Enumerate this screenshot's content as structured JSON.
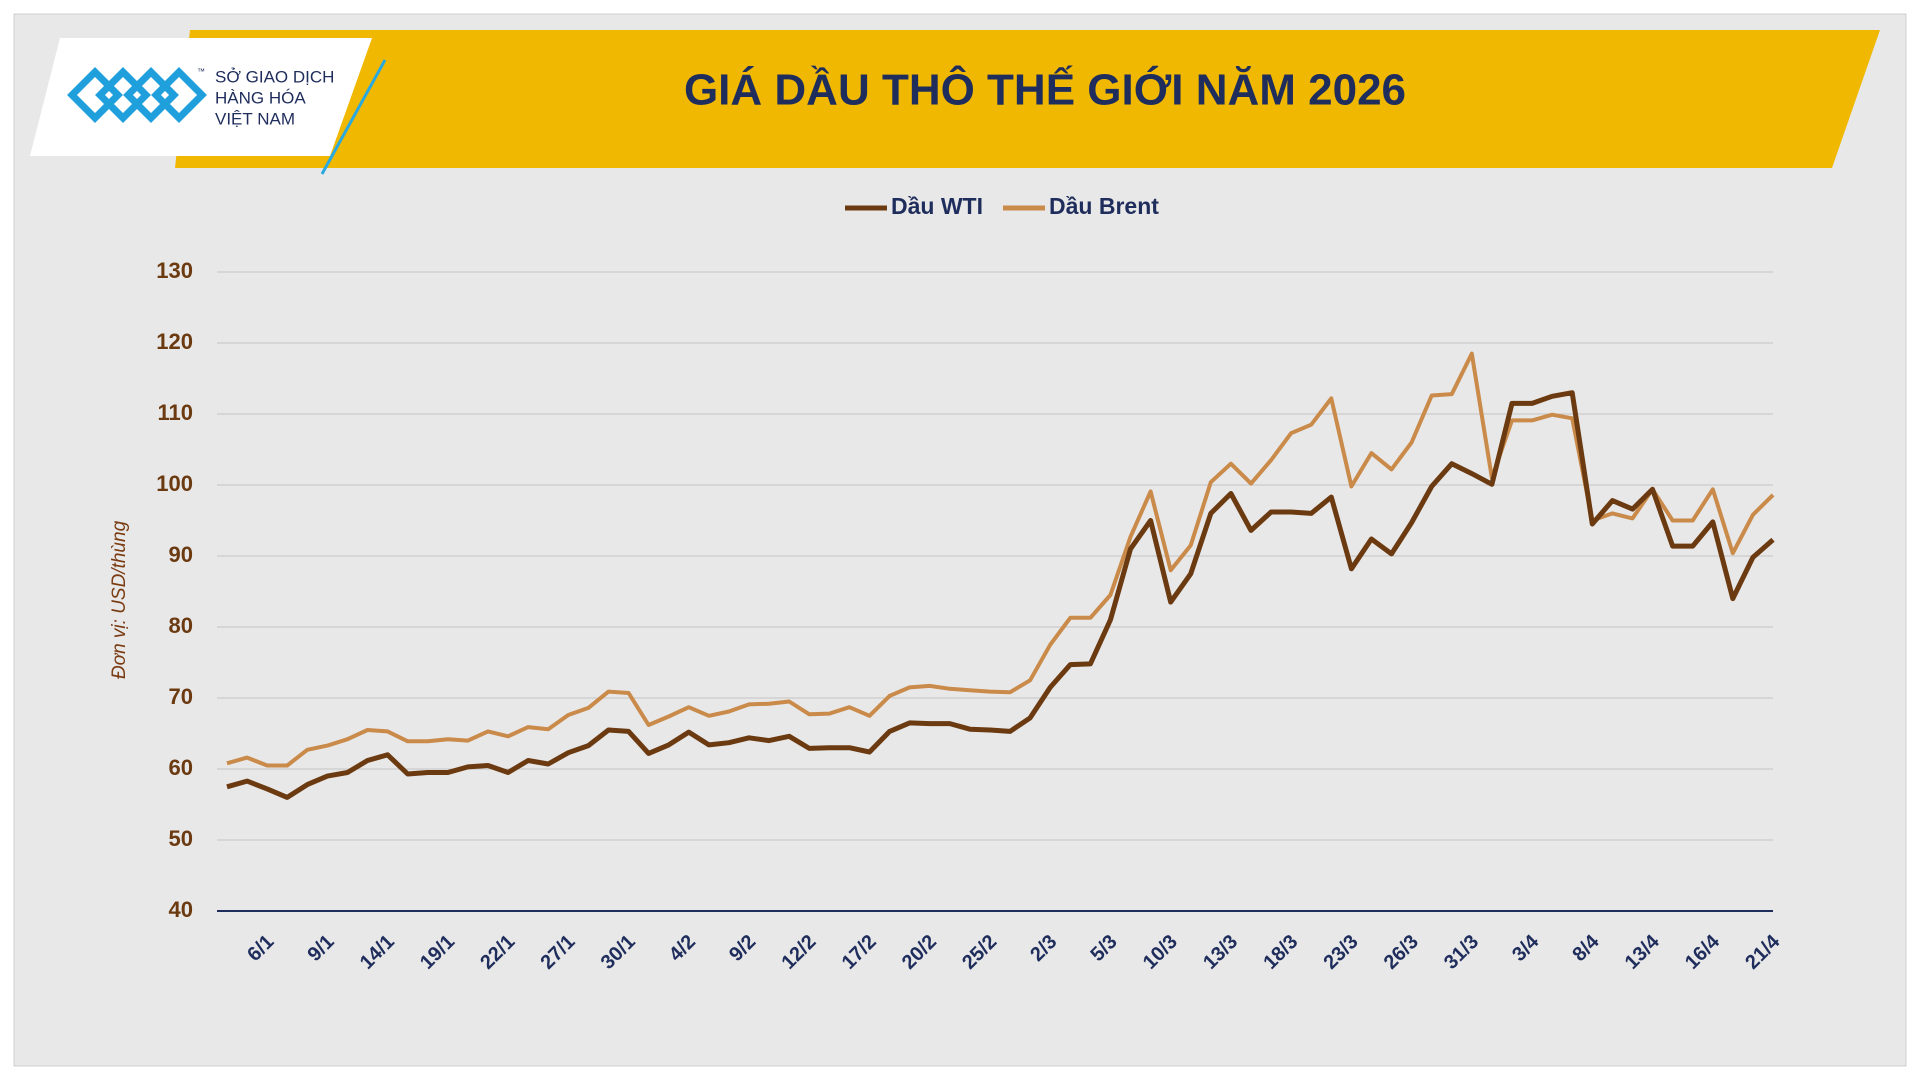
{
  "header": {
    "logo_lines": [
      "SỞ GIAO DỊCH",
      "HÀNG HÓA",
      "VIỆT NAM"
    ],
    "logo_mark": "™"
  },
  "chart_data": {
    "type": "line",
    "title": "GIÁ DẦU THÔ THẾ GIỚI NĂM 2026",
    "y_label": "Đơn vị: USD/thùng",
    "categories": [
      null,
      null,
      "6/1",
      null,
      null,
      "9/1",
      null,
      null,
      "14/1",
      null,
      null,
      "19/1",
      null,
      null,
      "22/1",
      null,
      null,
      "27/1",
      null,
      null,
      "30/1",
      null,
      null,
      "4/2",
      null,
      null,
      "9/2",
      null,
      null,
      "12/2",
      null,
      null,
      "17/2",
      null,
      null,
      "20/2",
      null,
      null,
      "25/2",
      null,
      null,
      "2/3",
      null,
      null,
      "5/3",
      null,
      null,
      "10/3",
      null,
      null,
      "13/3",
      null,
      null,
      "18/3",
      null,
      null,
      "23/3",
      null,
      null,
      "26/3",
      null,
      null,
      "31/3",
      null,
      null,
      "3/4",
      null,
      null,
      "8/4",
      null,
      null,
      "13/4",
      null,
      null,
      "16/4",
      null,
      null,
      "21/4"
    ],
    "series": [
      {
        "name": "Dầu WTI",
        "color": "#6b3a10",
        "values": [
          57.5,
          58.3,
          57.2,
          56.0,
          57.8,
          59,
          59.5,
          61.2,
          62,
          59.3,
          59.5,
          59.5,
          60.3,
          60.5,
          59.5,
          61.2,
          60.7,
          62.3,
          63.3,
          65.5,
          65.3,
          62.2,
          63.4,
          65.2,
          63.4,
          63.7,
          64.4,
          64.0,
          64.6,
          62.9,
          63.0,
          63.0,
          62.4,
          65.3,
          66.5,
          66.4,
          66.4,
          65.6,
          65.5,
          65.3,
          67.2,
          71.5,
          74.7,
          74.8,
          81,
          91,
          95,
          83.5,
          87.5,
          96,
          98.8,
          93.6,
          96.2,
          96.2,
          96,
          98.3,
          88.2,
          92.4,
          90.3,
          94.7,
          99.8,
          103,
          101.6,
          100.1,
          111.5,
          111.5,
          112.5,
          113,
          94.5,
          97.8,
          96.6,
          99.4,
          91.4,
          91.4,
          94.8,
          84,
          89.8,
          92.3
        ]
      },
      {
        "name": "Dầu Brent",
        "color": "#c98a4a",
        "values": [
          60.8,
          61.6,
          60.5,
          60.5,
          62.7,
          63.3,
          64.2,
          65.5,
          65.3,
          63.9,
          63.9,
          64.2,
          64.0,
          65.3,
          64.6,
          65.9,
          65.6,
          67.6,
          68.6,
          70.9,
          70.7,
          66.2,
          67.4,
          68.7,
          67.5,
          68.1,
          69.1,
          69.2,
          69.5,
          67.7,
          67.8,
          68.7,
          67.5,
          70.3,
          71.5,
          71.7,
          71.3,
          71.1,
          70.9,
          70.8,
          72.5,
          77.5,
          81.3,
          81.3,
          84.5,
          92.7,
          99.1,
          88,
          91.5,
          100.4,
          103,
          100.2,
          103.5,
          107.3,
          108.5,
          112.2,
          99.8,
          104.5,
          102.2,
          106,
          112.6,
          112.8,
          118.5,
          101,
          109.1,
          109.1,
          109.9,
          109.4,
          95,
          96,
          95.3,
          99.4,
          95,
          95,
          99.4,
          90.4,
          95.8,
          98.6
        ]
      }
    ],
    "ylim": [
      40,
      130
    ],
    "yticks": [
      40,
      50,
      60,
      70,
      80,
      90,
      100,
      110,
      120,
      130
    ],
    "grid": true,
    "legend": "top"
  }
}
